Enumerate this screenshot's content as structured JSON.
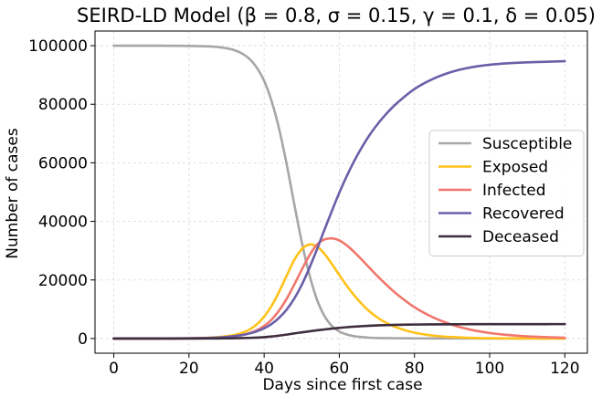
{
  "chart_data": {
    "type": "line",
    "title": "SEIRD-LD Model (β = 0.8, σ = 0.15, γ = 0.1, δ = 0.05)",
    "xlabel": "Days since first case",
    "ylabel": "Number of cases",
    "xlim": [
      -5,
      126
    ],
    "ylim": [
      -5000,
      105000
    ],
    "xticks": [
      0,
      20,
      40,
      60,
      80,
      100,
      120
    ],
    "yticks": [
      0,
      20000,
      40000,
      60000,
      80000,
      100000
    ],
    "grid": true,
    "legend_position": "center-right",
    "x": [
      0,
      5,
      10,
      15,
      20,
      25,
      28,
      30,
      32,
      34,
      36,
      38,
      40,
      42,
      44,
      46,
      48,
      50,
      52,
      54,
      56,
      58,
      60,
      62,
      64,
      66,
      68,
      70,
      72,
      75,
      80,
      85,
      90,
      95,
      100,
      105,
      110,
      115,
      120
    ],
    "series": [
      {
        "name": "Susceptible",
        "color": "#a6a6a6",
        "values": [
          100000,
          100000,
          99990,
          99970,
          99920,
          99750,
          99500,
          99100,
          98500,
          97400,
          95600,
          92600,
          88000,
          81000,
          71500,
          59500,
          46000,
          33000,
          22000,
          13500,
          7800,
          4300,
          2400,
          1400,
          800,
          500,
          300,
          200,
          150,
          100,
          60,
          40,
          30,
          25,
          20,
          20,
          20,
          20,
          20
        ]
      },
      {
        "name": "Exposed",
        "color": "#ffc219",
        "values": [
          0,
          5,
          15,
          40,
          100,
          280,
          500,
          780,
          1200,
          1900,
          3000,
          4800,
          7500,
          11200,
          16000,
          21500,
          26800,
          30500,
          32100,
          31500,
          29000,
          25500,
          21700,
          18000,
          14700,
          11800,
          9300,
          7300,
          5700,
          3900,
          2000,
          1000,
          500,
          250,
          120,
          60,
          30,
          15,
          8
        ]
      },
      {
        "name": "Infected",
        "color": "#f0776c",
        "values": [
          0,
          2,
          8,
          20,
          60,
          160,
          300,
          480,
          750,
          1150,
          1800,
          2800,
          4300,
          6500,
          9600,
          13600,
          18400,
          23500,
          28300,
          32000,
          33800,
          34200,
          33500,
          31800,
          29500,
          26900,
          24200,
          21500,
          19000,
          15500,
          10700,
          7200,
          4700,
          3000,
          1900,
          1200,
          750,
          470,
          290
        ]
      },
      {
        "name": "Recovered",
        "color": "#6b5fa8",
        "values": [
          0,
          5,
          15,
          40,
          90,
          220,
          380,
          560,
          820,
          1180,
          1700,
          2450,
          3500,
          5000,
          7100,
          9900,
          13600,
          18300,
          24000,
          30300,
          37000,
          43500,
          49800,
          55500,
          60700,
          65300,
          69400,
          72900,
          76000,
          80000,
          85200,
          88700,
          91100,
          92600,
          93500,
          94000,
          94300,
          94500,
          94700
        ]
      },
      {
        "name": "Deceased",
        "color": "#3f2d3e",
        "values": [
          0,
          0,
          2,
          5,
          10,
          25,
          45,
          70,
          100,
          150,
          220,
          330,
          480,
          700,
          1000,
          1350,
          1750,
          2100,
          2450,
          2800,
          3100,
          3400,
          3650,
          3880,
          4070,
          4230,
          4370,
          4480,
          4570,
          4670,
          4780,
          4840,
          4880,
          4900,
          4910,
          4920,
          4925,
          4928,
          4930
        ]
      }
    ]
  }
}
